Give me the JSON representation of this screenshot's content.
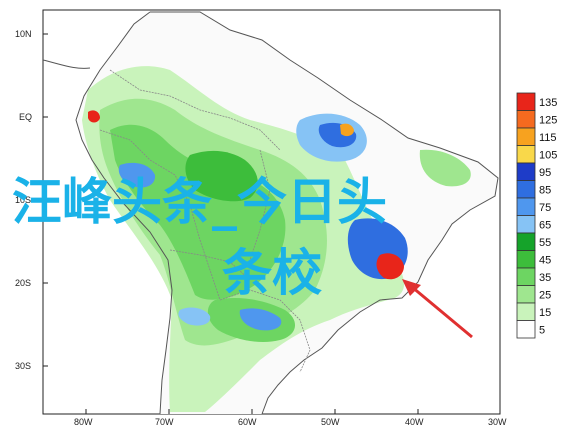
{
  "map": {
    "lat_labels": [
      "10N",
      "EQ",
      "10S",
      "20S",
      "30S"
    ],
    "lon_labels": [
      "80W",
      "70W",
      "60W",
      "50W",
      "40W",
      "30W"
    ],
    "land_color": "#fafafa",
    "coast_color": "#555555",
    "border_color": "#888888"
  },
  "legend": {
    "entries": [
      {
        "label": "135",
        "color": "#e8251a"
      },
      {
        "label": "125",
        "color": "#f56a1f"
      },
      {
        "label": "115",
        "color": "#f7a21f"
      },
      {
        "label": "105",
        "color": "#f9d84a"
      },
      {
        "label": "95",
        "color": "#1e3cc8"
      },
      {
        "label": "85",
        "color": "#2f6ee0"
      },
      {
        "label": "75",
        "color": "#4f97ee"
      },
      {
        "label": "65",
        "color": "#86c3f5"
      },
      {
        "label": "55",
        "color": "#15a32a"
      },
      {
        "label": "45",
        "color": "#3dbd3b"
      },
      {
        "label": "35",
        "color": "#6dd562"
      },
      {
        "label": "25",
        "color": "#9fe68f"
      },
      {
        "label": "15",
        "color": "#c9f3bb"
      },
      {
        "label": "5",
        "color": "#ffffff"
      }
    ]
  },
  "watermark": {
    "line1": "汪峰头条_今日头",
    "line2": "条校",
    "color": "#1ab2e8"
  },
  "arrow": {
    "color": "#e03030"
  }
}
